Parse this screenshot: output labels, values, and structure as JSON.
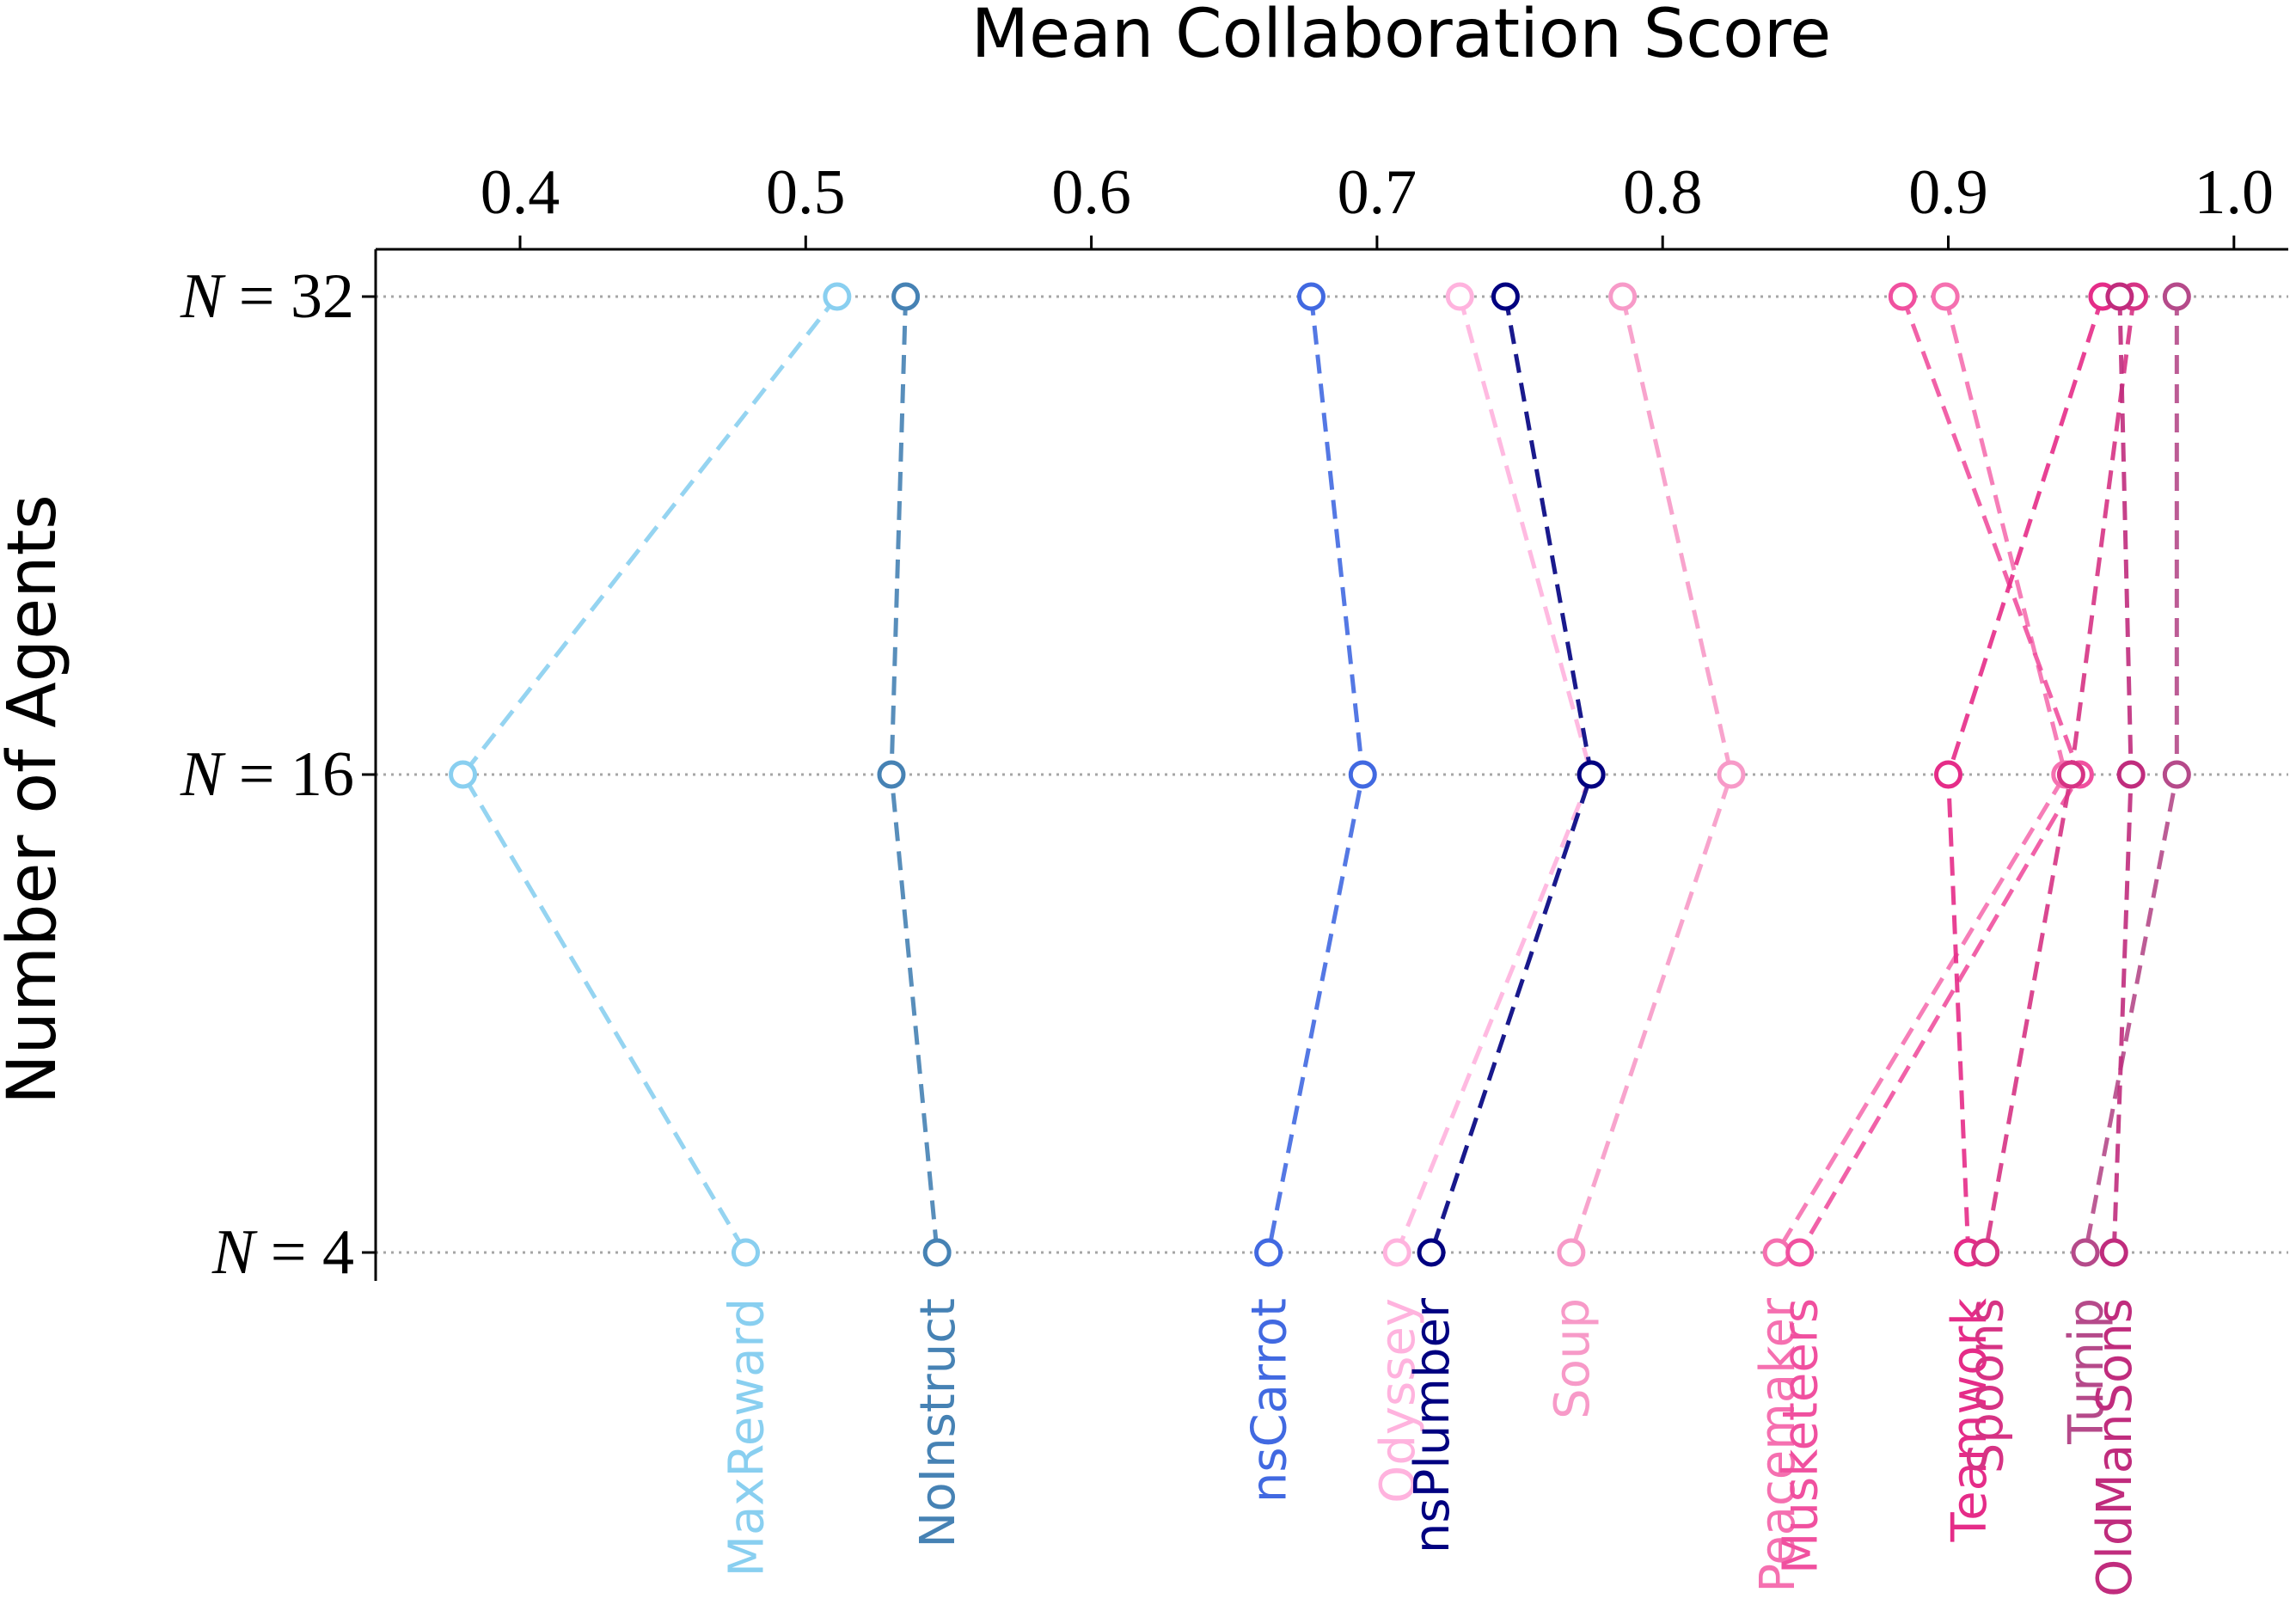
{
  "chart_data": {
    "type": "line",
    "title": "",
    "xlabel": "Mean Collaboration Score",
    "ylabel": "Number of Agents",
    "xlim": [
      0.35,
      1.02
    ],
    "x_ticks": [
      0.4,
      0.5,
      0.6,
      0.7,
      0.8,
      0.9,
      1.0
    ],
    "x_tick_labels": [
      "0.4",
      "0.5",
      "0.6",
      "0.7",
      "0.8",
      "0.9",
      "1.0"
    ],
    "x_axis_position": "top",
    "y_categories": [
      {
        "prefix": "N",
        "eq": "= 32",
        "n": 32
      },
      {
        "prefix": "N",
        "eq": "= 16",
        "n": 16
      },
      {
        "prefix": "N",
        "eq": "= 4",
        "n": 4
      }
    ],
    "grid": "horizontal dotted at each N",
    "marker": "open circle",
    "line_style": "dashed",
    "series": [
      {
        "name": "MaxReward",
        "color": "#89cff0",
        "values": {
          "N32": 0.511,
          "N16": 0.38,
          "N4": 0.479
        }
      },
      {
        "name": "NoInstruct",
        "color": "#4682b4",
        "values": {
          "N32": 0.535,
          "N16": 0.53,
          "N4": 0.546
        }
      },
      {
        "name": "nsCarrot",
        "color": "#4169e1",
        "values": {
          "N32": 0.677,
          "N16": 0.695,
          "N4": 0.662
        }
      },
      {
        "name": "Odyssey",
        "color": "#ffb3de",
        "values": {
          "N32": 0.729,
          "N16": 0.775,
          "N4": 0.707
        }
      },
      {
        "name": "nsPlumber",
        "color": "#000080",
        "values": {
          "N32": 0.745,
          "N16": 0.775,
          "N4": 0.719
        }
      },
      {
        "name": "Soup",
        "color": "#f79ac8",
        "values": {
          "N32": 0.786,
          "N16": 0.824,
          "N4": 0.768
        }
      },
      {
        "name": "Peacemaker",
        "color": "#f570b0",
        "values": {
          "N32": 0.899,
          "N16": 0.941,
          "N4": 0.84
        }
      },
      {
        "name": "Musketeers",
        "color": "#f0509f",
        "values": {
          "N32": 0.884,
          "N16": 0.946,
          "N4": 0.848
        }
      },
      {
        "name": "Teamwork",
        "color": "#e52c88",
        "values": {
          "N32": 0.954,
          "N16": 0.9,
          "N4": 0.907
        }
      },
      {
        "name": "Spoons",
        "color": "#d63384",
        "values": {
          "N32": 0.965,
          "N16": 0.943,
          "N4": 0.913
        }
      },
      {
        "name": "Turnip",
        "color": "#b54a8a",
        "values": {
          "N32": 0.98,
          "N16": 0.98,
          "N4": 0.948
        }
      },
      {
        "name": "OldManSons",
        "color": "#c02c7d",
        "values": {
          "N32": 0.96,
          "N16": 0.964,
          "N4": 0.958
        }
      }
    ],
    "series_labels_below": [
      {
        "name": "MaxReward",
        "color": "#89cff0"
      },
      {
        "name": "NoInstruct",
        "color": "#4682b4"
      },
      {
        "name": "nsCarrot",
        "color": "#4169e1"
      },
      {
        "name": "Odyssey",
        "color": "#ffb3de"
      },
      {
        "name": "nsPlumber",
        "color": "#000080"
      },
      {
        "name": "Soup",
        "color": "#f79ac8"
      },
      {
        "name": "Peacemaker",
        "color": "#f570b0"
      },
      {
        "name": "Musketeers",
        "color": "#f0509f"
      },
      {
        "name": "Teamwork",
        "color": "#e52c88"
      },
      {
        "name": "Spoons",
        "color": "#d63384"
      },
      {
        "name": "Turnip",
        "color": "#b54a8a"
      },
      {
        "name": "OldManSons",
        "color": "#c02c7d"
      }
    ]
  }
}
